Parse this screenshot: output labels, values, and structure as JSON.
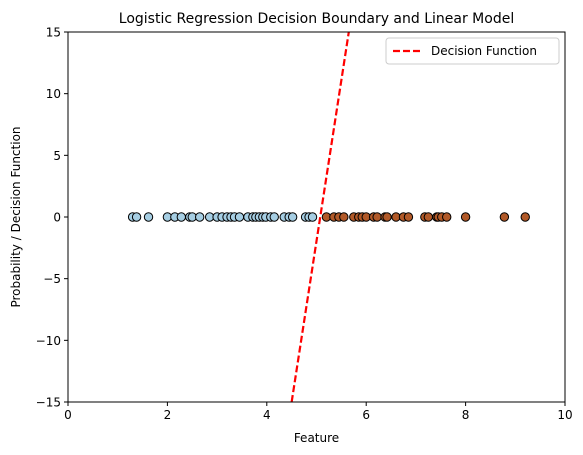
{
  "chart_data": {
    "type": "scatter",
    "title": "Logistic Regression Decision Boundary and Linear Model",
    "xlabel": "Feature",
    "ylabel": "Probability / Decision Function",
    "xlim": [
      0,
      10
    ],
    "ylim": [
      -15,
      15
    ],
    "xticks": [
      0,
      2,
      4,
      6,
      8,
      10
    ],
    "xtick_labels": [
      "0",
      "2",
      "4",
      "6",
      "8",
      "10"
    ],
    "yticks": [
      -15,
      -10,
      -5,
      0,
      5,
      10,
      15
    ],
    "ytick_labels": [
      "−15",
      "−10",
      "−5",
      "0",
      "5",
      "10",
      "15"
    ],
    "grid": false,
    "legend": {
      "placement": "top-right",
      "entries": [
        "Decision Function"
      ]
    },
    "series": [
      {
        "kind": "scatter",
        "color": "#a6cee3",
        "edge_color": "#000000",
        "x": [
          1.3,
          1.38,
          1.62,
          2.0,
          2.15,
          2.28,
          2.45,
          2.5,
          2.65,
          2.85,
          3.0,
          3.1,
          3.2,
          3.28,
          3.35,
          3.45,
          3.62,
          3.72,
          3.78,
          3.85,
          3.92,
          3.98,
          4.08,
          4.15,
          4.35,
          4.45,
          4.52,
          4.78,
          4.85,
          4.92
        ],
        "y": [
          0,
          0,
          0,
          0,
          0,
          0,
          0,
          0,
          0,
          0,
          0,
          0,
          0,
          0,
          0,
          0,
          0,
          0,
          0,
          0,
          0,
          0,
          0,
          0,
          0,
          0,
          0,
          0,
          0,
          0
        ]
      },
      {
        "kind": "scatter",
        "color": "#b15928",
        "edge_color": "#000000",
        "x": [
          5.2,
          5.35,
          5.45,
          5.55,
          5.75,
          5.85,
          5.92,
          6.0,
          6.15,
          6.22,
          6.38,
          6.42,
          6.6,
          6.75,
          6.85,
          7.18,
          7.25,
          7.42,
          7.45,
          7.52,
          7.62,
          8.0,
          8.78,
          9.2
        ],
        "y": [
          0,
          0,
          0,
          0,
          0,
          0,
          0,
          0,
          0,
          0,
          0,
          0,
          0,
          0,
          0,
          0,
          0,
          0,
          0,
          0,
          0,
          0,
          0,
          0
        ]
      },
      {
        "kind": "line",
        "name": "Decision Function",
        "color": "#ff0000",
        "dash": "dashed",
        "x": [
          4.5,
          5.65
        ],
        "y": [
          -15,
          15
        ]
      }
    ]
  }
}
